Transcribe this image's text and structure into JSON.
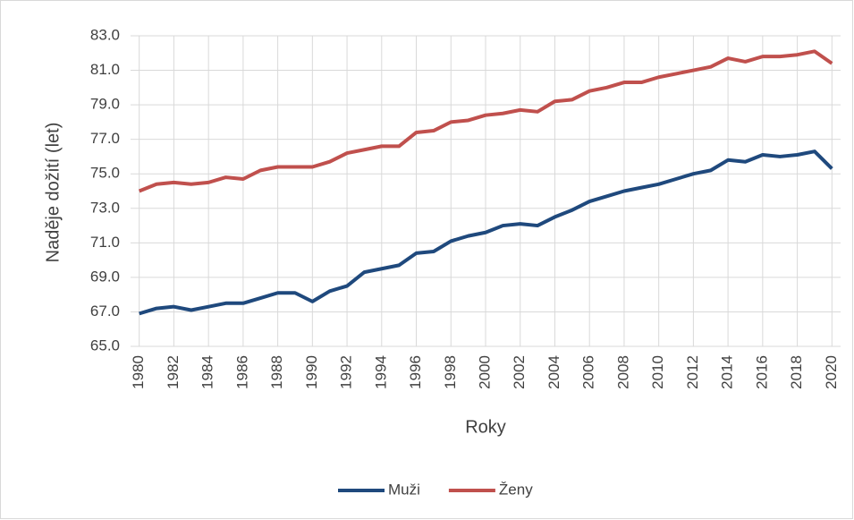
{
  "chart_data": {
    "type": "line",
    "x_label": "Roky",
    "y_label": "Naděje dožití (let)",
    "x": [
      1980,
      1981,
      1982,
      1983,
      1984,
      1985,
      1986,
      1987,
      1988,
      1989,
      1990,
      1991,
      1992,
      1993,
      1994,
      1995,
      1996,
      1997,
      1998,
      1999,
      2000,
      2001,
      2002,
      2003,
      2004,
      2005,
      2006,
      2007,
      2008,
      2009,
      2010,
      2011,
      2012,
      2013,
      2014,
      2015,
      2016,
      2017,
      2018,
      2019,
      2020
    ],
    "series": [
      {
        "name": "Muži",
        "color": "#1f497d",
        "values": [
          66.9,
          67.2,
          67.3,
          67.1,
          67.3,
          67.5,
          67.5,
          67.8,
          68.1,
          68.1,
          67.6,
          68.2,
          68.5,
          69.3,
          69.5,
          69.7,
          70.4,
          70.5,
          71.1,
          71.4,
          71.6,
          72.0,
          72.1,
          72.0,
          72.5,
          72.9,
          73.4,
          73.7,
          74.0,
          74.2,
          74.4,
          74.7,
          75.0,
          75.2,
          75.8,
          75.7,
          76.1,
          76.0,
          76.1,
          76.3,
          75.3
        ]
      },
      {
        "name": "Ženy",
        "color": "#c0504d",
        "values": [
          74.0,
          74.4,
          74.5,
          74.4,
          74.5,
          74.8,
          74.7,
          75.2,
          75.4,
          75.4,
          75.4,
          75.7,
          76.2,
          76.4,
          76.6,
          76.6,
          77.4,
          77.5,
          78.0,
          78.1,
          78.4,
          78.5,
          78.7,
          78.6,
          79.2,
          79.3,
          79.8,
          80.0,
          80.3,
          80.3,
          80.6,
          80.8,
          81.0,
          81.2,
          81.7,
          81.5,
          81.8,
          81.8,
          81.9,
          82.1,
          81.4
        ]
      }
    ],
    "xlim": [
      1979.5,
      2020.5
    ],
    "xticks": [
      1980,
      1982,
      1984,
      1986,
      1988,
      1990,
      1992,
      1994,
      1996,
      1998,
      2000,
      2002,
      2004,
      2006,
      2008,
      2010,
      2012,
      2014,
      2016,
      2018,
      2020
    ],
    "ylim": [
      65,
      83
    ],
    "yticks": [
      {
        "value": 65,
        "label": "65.0"
      },
      {
        "value": 67,
        "label": "67.0"
      },
      {
        "value": 69,
        "label": "69.0"
      },
      {
        "value": 71,
        "label": "71.0"
      },
      {
        "value": 73,
        "label": "73.0"
      },
      {
        "value": 75,
        "label": "75.0"
      },
      {
        "value": 77,
        "label": "77.0"
      },
      {
        "value": 79,
        "label": "79.0"
      },
      {
        "value": 81,
        "label": "81.0"
      },
      {
        "value": 83,
        "label": "83.0"
      }
    ],
    "grid": true,
    "legend": "bottom"
  }
}
